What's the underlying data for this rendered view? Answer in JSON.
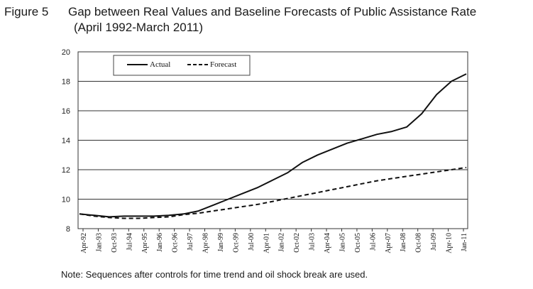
{
  "figure": {
    "number": "Figure 5",
    "title": "Gap between Real Values and Baseline Forecasts of Public Assistance Rate",
    "subtitle": "(April 1992-March 2011)"
  },
  "note": "Note: Sequences after controls for time trend and oil shock break are used.",
  "chart_data": {
    "type": "line",
    "ylim": [
      8,
      20
    ],
    "yticks": [
      "8",
      "10",
      "12",
      "14",
      "16",
      "18",
      "20"
    ],
    "grid": true,
    "legend_position": "top-left",
    "x_tick_labels": [
      "Apr-92",
      "Jan-93",
      "Oct-93",
      "Jul-94",
      "Apr-95",
      "Jan-96",
      "Oct-96",
      "Jul-97",
      "Apr-98",
      "Jan-99",
      "Oct-99",
      "Jul-00",
      "Apr-01",
      "Jan-02",
      "Oct-02",
      "Jul-03",
      "Apr-04",
      "Jan-05",
      "Oct-05",
      "Jul-06",
      "Apr-07",
      "Jan-08",
      "Oct-08",
      "Jul-09",
      "Apr-10",
      "Jan-11"
    ],
    "series": [
      {
        "name": "Actual",
        "style": "solid",
        "color": "#111111",
        "values": [
          9.0,
          8.9,
          8.8,
          8.85,
          8.85,
          8.85,
          8.9,
          9.0,
          9.2,
          9.6,
          10.0,
          10.4,
          10.8,
          11.3,
          11.8,
          12.5,
          13.0,
          13.4,
          13.8,
          14.1,
          14.4,
          14.6,
          14.9,
          15.8,
          17.1,
          18.0,
          18.5
        ]
      },
      {
        "name": "Forecast",
        "style": "dashed",
        "color": "#111111",
        "values": [
          9.0,
          8.85,
          8.75,
          8.7,
          8.7,
          8.75,
          8.8,
          8.95,
          9.05,
          9.2,
          9.35,
          9.5,
          9.65,
          9.85,
          10.05,
          10.25,
          10.45,
          10.65,
          10.85,
          11.05,
          11.25,
          11.4,
          11.55,
          11.7,
          11.85,
          12.0,
          12.15
        ]
      }
    ]
  }
}
